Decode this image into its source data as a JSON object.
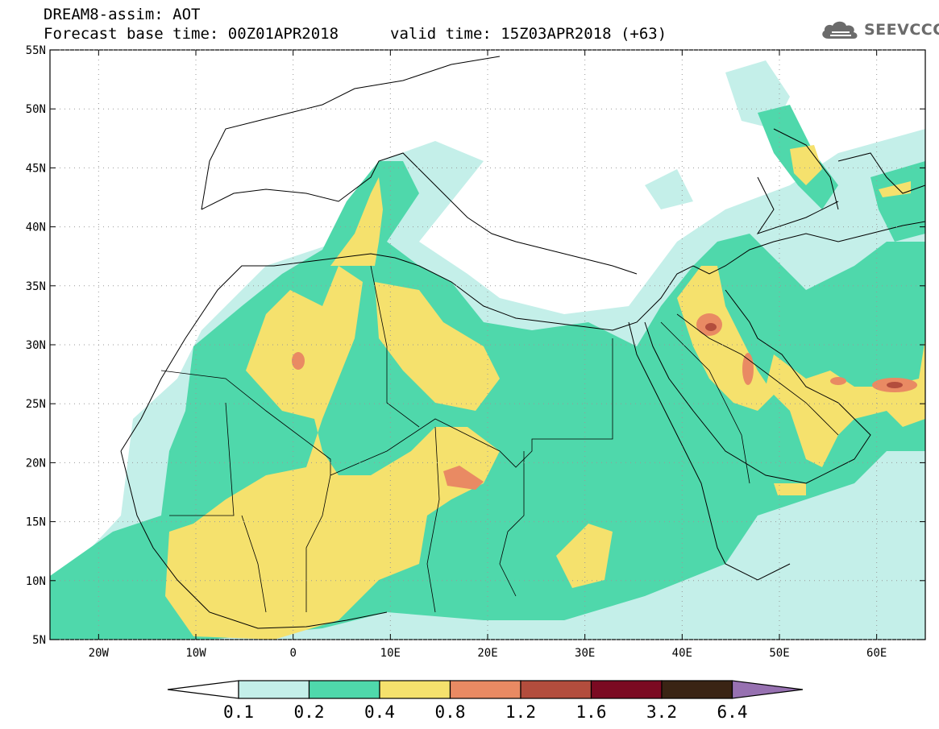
{
  "header": {
    "title_line1": "DREAM8-assim: AOT",
    "title_line2": "Forecast base time: 00Z01APR2018",
    "valid_time": "valid time: 15Z03APR2018 (+63)"
  },
  "logo": {
    "text": "SEEVCCC",
    "icon": "cloud-icon"
  },
  "map": {
    "lon_range": [
      -25,
      65
    ],
    "lat_range": [
      5,
      55
    ],
    "lat_ticks": [
      {
        "value": 55,
        "label": "55N"
      },
      {
        "value": 50,
        "label": "50N"
      },
      {
        "value": 45,
        "label": "45N"
      },
      {
        "value": 40,
        "label": "40N"
      },
      {
        "value": 35,
        "label": "35N"
      },
      {
        "value": 30,
        "label": "30N"
      },
      {
        "value": 25,
        "label": "25N"
      },
      {
        "value": 20,
        "label": "20N"
      },
      {
        "value": 15,
        "label": "15N"
      },
      {
        "value": 10,
        "label": "10N"
      },
      {
        "value": 5,
        "label": "5N"
      }
    ],
    "lon_ticks": [
      {
        "value": -20,
        "label": "20W"
      },
      {
        "value": -10,
        "label": "10W"
      },
      {
        "value": 0,
        "label": "0"
      },
      {
        "value": 10,
        "label": "10E"
      },
      {
        "value": 20,
        "label": "20E"
      },
      {
        "value": 30,
        "label": "30E"
      },
      {
        "value": 40,
        "label": "40E"
      },
      {
        "value": 50,
        "label": "50E"
      },
      {
        "value": 60,
        "label": "60E"
      }
    ],
    "field_colors": [
      "#c4efe9",
      "#4fd8ab",
      "#f5e16d",
      "#e98a63",
      "#b34d3d",
      "#7b0a22",
      "#3a2414",
      "#9771b1"
    ]
  },
  "colorbar": {
    "labels": [
      "0.1",
      "0.2",
      "0.4",
      "0.8",
      "1.2",
      "1.6",
      "3.2",
      "6.4"
    ],
    "colors": [
      "#c4efe9",
      "#4fd8ab",
      "#f5e16d",
      "#e98a63",
      "#b34d3d",
      "#7b0a22",
      "#3a2414"
    ],
    "under_color": "#ffffff",
    "over_color": "#9771b1"
  }
}
